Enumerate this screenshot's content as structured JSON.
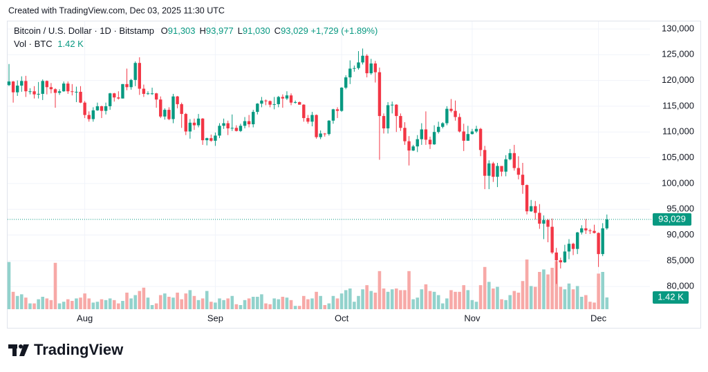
{
  "credit": "Created with TradingView.com, Dec 03, 2025 11:30 UTC",
  "legend": {
    "symbol": "Bitcoin / U.S. Dollar · 1D · Bitstamp",
    "fields": [
      {
        "label": "O",
        "value": "91,303"
      },
      {
        "label": "H",
        "value": "93,977"
      },
      {
        "label": "L",
        "value": "91,030"
      },
      {
        "label": "C",
        "value": "93,029"
      }
    ],
    "change": "+1,729 (+1.89%)",
    "volume_title": "Vol · BTC"
  },
  "footer": {
    "brand": "TradingView"
  },
  "chart_data": {
    "type": "candlestick",
    "categories": [
      null,
      null,
      null,
      null,
      null,
      null,
      null,
      null,
      null,
      null,
      null,
      null,
      null,
      null,
      null,
      null,
      null,
      null,
      "Aug",
      null,
      null,
      null,
      null,
      null,
      null,
      null,
      null,
      null,
      null,
      null,
      null,
      null,
      null,
      null,
      null,
      null,
      null,
      null,
      null,
      null,
      null,
      null,
      null,
      null,
      null,
      null,
      null,
      null,
      null,
      "Sep",
      null,
      null,
      null,
      null,
      null,
      null,
      null,
      null,
      null,
      null,
      null,
      null,
      null,
      null,
      null,
      null,
      null,
      null,
      null,
      null,
      null,
      null,
      null,
      null,
      null,
      null,
      null,
      null,
      null,
      "Oct",
      null,
      null,
      null,
      null,
      null,
      null,
      null,
      null,
      null,
      null,
      null,
      null,
      null,
      null,
      null,
      null,
      null,
      null,
      null,
      null,
      null,
      null,
      null,
      null,
      null,
      null,
      null,
      null,
      null,
      null,
      "Nov",
      null,
      null,
      null,
      null,
      null,
      null,
      null,
      null,
      null,
      null,
      null,
      null,
      null,
      null,
      null,
      null,
      null,
      null,
      null,
      null,
      null,
      null,
      null,
      null,
      null,
      null,
      null,
      null,
      null,
      "Dec",
      null,
      null
    ],
    "open": [
      119100,
      119800,
      117700,
      119000,
      119900,
      117900,
      117900,
      117300,
      117400,
      119900,
      118700,
      118300,
      117600,
      117900,
      119400,
      117900,
      117800,
      117800,
      115700,
      113300,
      112500,
      114200,
      115000,
      114100,
      115000,
      117500,
      116700,
      116500,
      119300,
      118700,
      120100,
      123400,
      118400,
      117400,
      117500,
      117500,
      116300,
      113000,
      114300,
      112500,
      116900,
      115400,
      113500,
      110100,
      111800,
      111300,
      112600,
      108400,
      108800,
      108300,
      109300,
      111200,
      111700,
      110700,
      110800,
      110200,
      111200,
      112100,
      111500,
      113900,
      115500,
      116100,
      116000,
      115300,
      115400,
      116800,
      116500,
      117100,
      115700,
      115800,
      115300,
      112700,
      112000,
      113300,
      109000,
      109700,
      109600,
      112200,
      114400,
      114100,
      118600,
      120600,
      122300,
      122400,
      123500,
      124800,
      121400,
      123300,
      121600,
      113100,
      110700,
      115200,
      115300,
      113100,
      110800,
      108200,
      106400,
      107200,
      108600,
      110500,
      108500,
      107600,
      110000,
      111000,
      111700,
      114500,
      114100,
      112900,
      110100,
      108300,
      109600,
      110100,
      110600,
      106500,
      101500,
      103900,
      101300,
      103400,
      102300,
      104700,
      105900,
      103000,
      101700,
      99700,
      94600,
      95600,
      94300,
      92200,
      92900,
      91600,
      86600,
      85100,
      84700,
      86800,
      88300,
      87300,
      90500,
      91300,
      90900,
      90800,
      90400,
      86300,
      91303
    ],
    "high": [
      123200,
      119900,
      120000,
      120800,
      120900,
      118500,
      118900,
      119700,
      120200,
      120000,
      119500,
      118500,
      118300,
      119800,
      119800,
      119300,
      118800,
      118900,
      116000,
      114000,
      114800,
      115700,
      115100,
      115700,
      117600,
      117600,
      117900,
      119300,
      122300,
      120300,
      123700,
      124500,
      119200,
      117900,
      118600,
      117600,
      116900,
      114600,
      114800,
      117400,
      117000,
      115700,
      113700,
      112500,
      112600,
      113500,
      112700,
      108900,
      109500,
      109900,
      111700,
      112600,
      112200,
      113400,
      111300,
      111600,
      112900,
      113300,
      114300,
      115600,
      116800,
      116300,
      116100,
      116800,
      117000,
      117300,
      117900,
      117500,
      116100,
      115900,
      115400,
      113300,
      113900,
      113400,
      110300,
      109800,
      112300,
      114500,
      114800,
      118700,
      121000,
      123900,
      122900,
      125700,
      126200,
      125100,
      124200,
      123800,
      122500,
      113600,
      115800,
      115900,
      115400,
      113600,
      111900,
      109200,
      107500,
      109400,
      111700,
      114000,
      109100,
      111300,
      112000,
      111900,
      115000,
      116400,
      116100,
      113600,
      111600,
      111200,
      110600,
      111200,
      110800,
      107300,
      104500,
      104200,
      104000,
      103400,
      105500,
      106700,
      107500,
      105300,
      104000,
      99800,
      96800,
      96600,
      96000,
      93800,
      93100,
      93200,
      87500,
      85600,
      88100,
      89200,
      88500,
      90600,
      91900,
      93100,
      91200,
      92000,
      90500,
      92300,
      93977
    ],
    "low": [
      118900,
      115700,
      117000,
      117800,
      116800,
      117300,
      116500,
      116500,
      116200,
      117300,
      117500,
      114700,
      117200,
      117800,
      117400,
      117100,
      115800,
      115600,
      112700,
      112000,
      112000,
      114100,
      112700,
      113400,
      114300,
      115900,
      116300,
      116500,
      118100,
      118200,
      118900,
      117200,
      116800,
      117200,
      117200,
      114700,
      112700,
      112400,
      112300,
      111700,
      114600,
      110800,
      109400,
      108700,
      110400,
      110900,
      107500,
      107400,
      108100,
      107300,
      108800,
      110600,
      109400,
      110200,
      110100,
      110000,
      110700,
      110900,
      110900,
      113400,
      114800,
      115200,
      114800,
      114400,
      114800,
      114700,
      116200,
      115200,
      115500,
      115300,
      112000,
      111600,
      111100,
      108700,
      108600,
      109100,
      109300,
      111600,
      112700,
      113900,
      118300,
      119300,
      121700,
      122100,
      123100,
      120600,
      121100,
      119600,
      104600,
      109700,
      109700,
      113600,
      110000,
      110200,
      107500,
      103500,
      106300,
      106100,
      107500,
      107500,
      106700,
      107500,
      109700,
      110700,
      111300,
      113800,
      112200,
      109900,
      106300,
      108300,
      109500,
      109800,
      105300,
      98900,
      98900,
      100300,
      99300,
      101400,
      101400,
      104500,
      102500,
      100800,
      98000,
      94000,
      94500,
      93000,
      91200,
      89200,
      88600,
      86300,
      80500,
      83500,
      84600,
      85300,
      86100,
      86300,
      90100,
      90200,
      90200,
      90300,
      83800,
      85900,
      91030
    ],
    "close": [
      119800,
      117700,
      119000,
      119900,
      117900,
      117900,
      117300,
      117400,
      119900,
      118700,
      118300,
      117600,
      117900,
      119400,
      117900,
      117800,
      117800,
      115700,
      113300,
      112500,
      114200,
      115000,
      114100,
      115000,
      117500,
      116700,
      116500,
      119300,
      118700,
      120100,
      123400,
      118400,
      117400,
      117500,
      117500,
      116300,
      113000,
      114300,
      112500,
      116900,
      115400,
      113500,
      110100,
      111800,
      111300,
      112600,
      108400,
      108800,
      108300,
      109300,
      111200,
      111700,
      110700,
      110800,
      110200,
      111200,
      112100,
      111500,
      113900,
      115500,
      116100,
      116000,
      115300,
      115400,
      116800,
      116500,
      117100,
      115700,
      115800,
      115300,
      112700,
      112000,
      113300,
      109000,
      109700,
      109600,
      112200,
      114400,
      114100,
      118600,
      120600,
      122300,
      122400,
      123500,
      124800,
      121400,
      123300,
      121600,
      113100,
      110700,
      115200,
      115300,
      113100,
      110800,
      108200,
      106400,
      107200,
      108600,
      110500,
      108500,
      107600,
      110000,
      111000,
      111700,
      114500,
      114100,
      112900,
      110100,
      108300,
      109600,
      110100,
      110600,
      106500,
      101500,
      103900,
      101300,
      103400,
      102300,
      104700,
      105900,
      103000,
      101700,
      99700,
      94600,
      95600,
      94300,
      92200,
      92900,
      91600,
      86600,
      85100,
      84700,
      86800,
      88300,
      87300,
      90500,
      91300,
      90900,
      90800,
      90400,
      86300,
      91300,
      93029
    ],
    "volume": [
      5700,
      2100,
      1600,
      1800,
      1400,
      700,
      700,
      1200,
      1500,
      1300,
      1100,
      5600,
      700,
      900,
      1200,
      1000,
      1300,
      1400,
      1900,
      1300,
      800,
      900,
      1200,
      1100,
      1300,
      1100,
      700,
      1000,
      2000,
      1300,
      1700,
      2200,
      2600,
      1400,
      500,
      700,
      1700,
      1900,
      1500,
      1400,
      2000,
      1200,
      1900,
      2300,
      1600,
      1100,
      1300,
      2200,
      900,
      800,
      1300,
      1100,
      1300,
      1600,
      600,
      500,
      1100,
      1300,
      1500,
      1500,
      1800,
      700,
      600,
      1300,
      1200,
      1500,
      1400,
      1100,
      400,
      400,
      1600,
      1200,
      1300,
      2100,
      1600,
      500,
      700,
      1600,
      1300,
      1900,
      2300,
      2500,
      900,
      1600,
      2400,
      2900,
      2200,
      2000,
      4600,
      2500,
      2100,
      2400,
      2500,
      2300,
      2300,
      4600,
      1200,
      1400,
      2400,
      3000,
      2200,
      2100,
      1700,
      700,
      1300,
      2300,
      2100,
      2100,
      2900,
      2300,
      1100,
      900,
      2900,
      5100,
      3300,
      2500,
      2700,
      1200,
      1100,
      1700,
      2200,
      2000,
      3400,
      6000,
      2800,
      2700,
      4500,
      4800,
      4200,
      5000,
      5800,
      2700,
      2400,
      3100,
      2400,
      2800,
      1500,
      1700,
      900,
      800,
      4300,
      4500,
      1420
    ],
    "volume_label": "1.42 K",
    "price_label": "93,029",
    "up_color": "#089981",
    "down_color": "#f23645",
    "volume_up_color": "#92d2cc",
    "volume_down_color": "#f7a9a7",
    "ylim": [
      75600,
      131600
    ],
    "yticks": [
      {
        "value": 80000,
        "label": "80,000"
      },
      {
        "value": 85000,
        "label": "85,000"
      },
      {
        "value": 90000,
        "label": "90,000"
      },
      {
        "value": 95000,
        "label": "95,000"
      },
      {
        "value": 100000,
        "label": "100,000"
      },
      {
        "value": 105000,
        "label": "105,000"
      },
      {
        "value": 110000,
        "label": "110,000"
      },
      {
        "value": 115000,
        "label": "115,000"
      },
      {
        "value": 120000,
        "label": "120,000"
      },
      {
        "value": 125000,
        "label": "125,000"
      },
      {
        "value": 130000,
        "label": "130,000"
      }
    ],
    "grid": true
  }
}
